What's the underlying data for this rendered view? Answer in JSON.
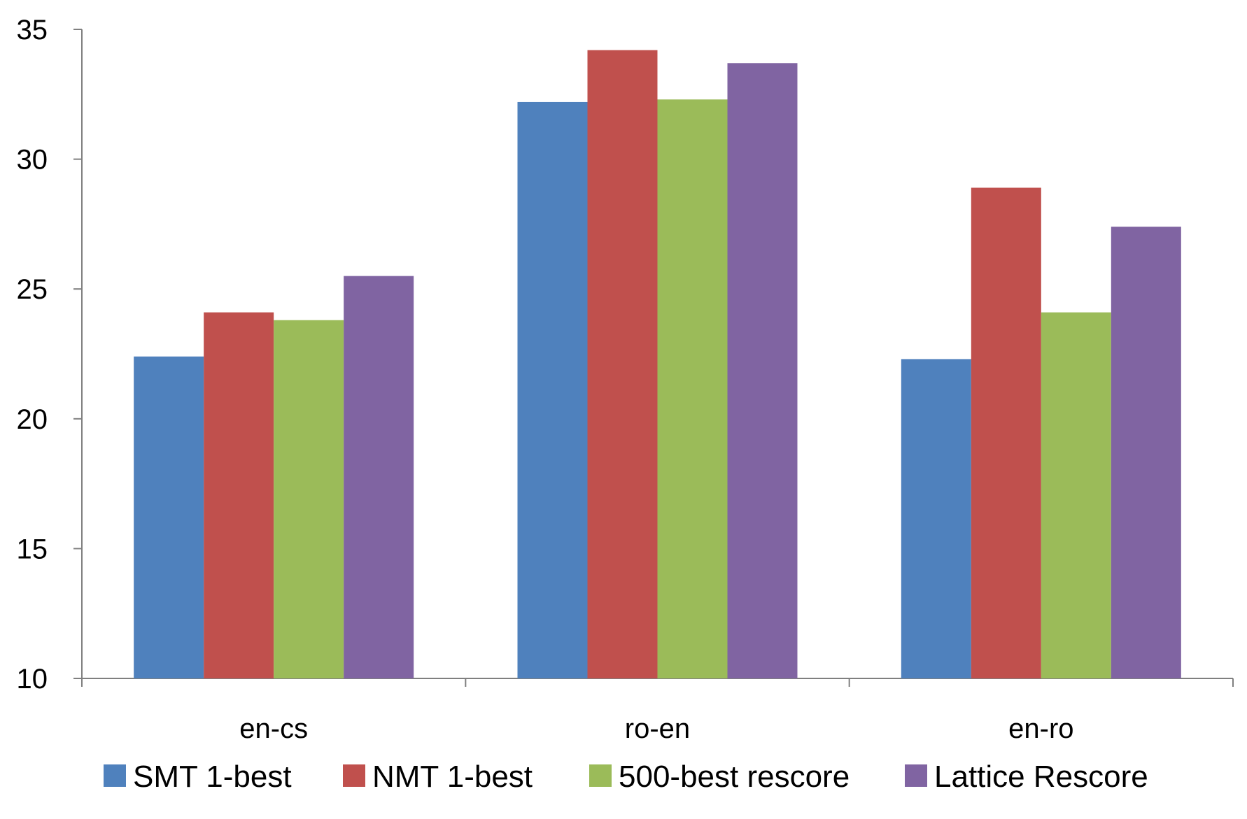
{
  "chart_data": {
    "type": "bar",
    "title": "",
    "xlabel": "",
    "ylabel": "",
    "ylim": [
      10,
      35
    ],
    "yticks": [
      "10",
      "15",
      "20",
      "25",
      "30",
      "35"
    ],
    "categories": [
      "en-cs",
      "ro-en",
      "en-ro"
    ],
    "series": [
      {
        "name": "SMT 1-best",
        "color": "#4f81bd",
        "values": [
          22.4,
          32.2,
          22.3
        ]
      },
      {
        "name": "NMT 1-best",
        "color": "#c0504d",
        "values": [
          24.1,
          34.2,
          28.9
        ]
      },
      {
        "name": "500-best rescore",
        "color": "#9bbb59",
        "values": [
          23.8,
          32.3,
          24.1
        ]
      },
      {
        "name": "Lattice Rescore",
        "color": "#8064a2",
        "values": [
          25.5,
          33.7,
          27.4
        ]
      }
    ],
    "grid": false,
    "legend": "bottom"
  }
}
